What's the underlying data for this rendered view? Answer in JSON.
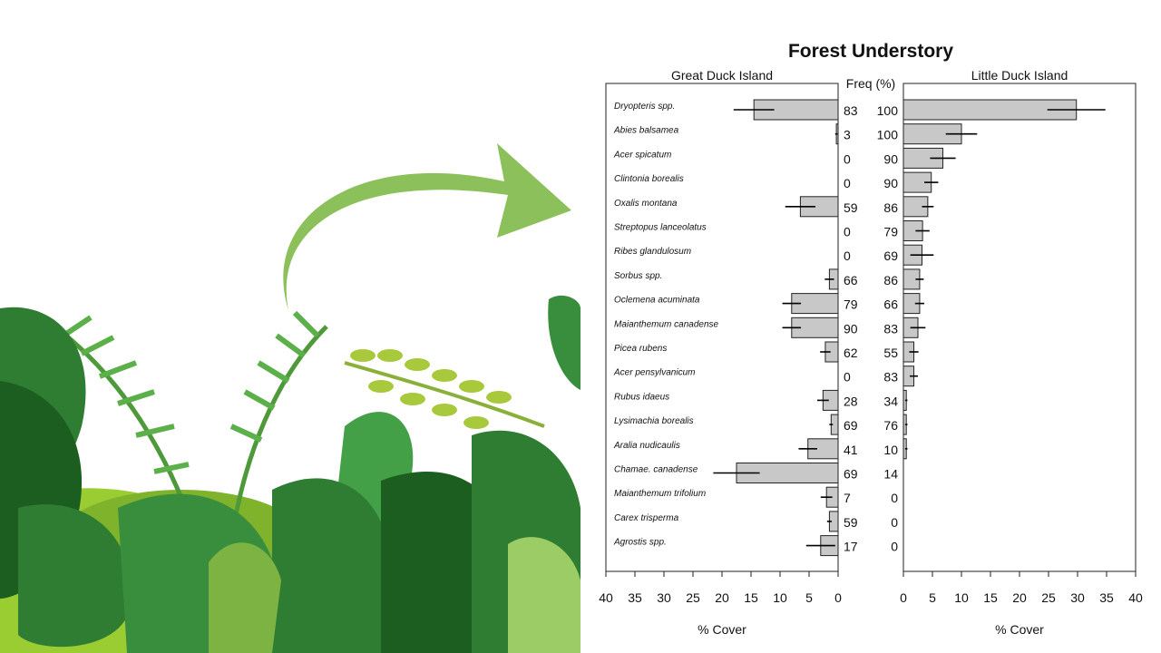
{
  "chart_data": {
    "type": "bar",
    "title": "Forest Understory",
    "freq_header": "Freq (%)",
    "categories": [
      "Dryopteris spp.",
      "Abies balsamea",
      "Acer spicatum",
      "Clintonia borealis",
      "Oxalis montana",
      "Streptopus lanceolatus",
      "Ribes glandulosum",
      "Sorbus spp.",
      "Oclemena acuminata",
      "Maianthemum canadense",
      "Picea rubens",
      "Acer pensylvanicum",
      "Rubus idaeus",
      "Lysimachia borealis",
      "Aralia nudicaulis",
      "Chamae. canadense",
      "Maianthemum trifolium",
      "Carex trisperma",
      "Agrostis spp."
    ],
    "panels": [
      {
        "name": "Great Duck Island",
        "direction": "left",
        "xlabel": "% Cover",
        "xlim": [
          0,
          40
        ],
        "ticks": [
          "40",
          "35",
          "30",
          "25",
          "20",
          "15",
          "10",
          "5",
          "0"
        ],
        "values": [
          14.5,
          0.3,
          0,
          0,
          6.5,
          0,
          0,
          1.5,
          8,
          8,
          2.2,
          0,
          2.6,
          1.2,
          5.2,
          17.5,
          2,
          1.5,
          3
        ],
        "errors": [
          3.5,
          0.2,
          0,
          0,
          2.6,
          0,
          0,
          0.8,
          1.6,
          1.6,
          0.9,
          0,
          1,
          0.3,
          1.6,
          4,
          1,
          0.4,
          2.5
        ],
        "freq": [
          "83",
          "3",
          "0",
          "0",
          "59",
          "0",
          "0",
          "66",
          "79",
          "90",
          "62",
          "0",
          "28",
          "69",
          "41",
          "69",
          "7",
          "59",
          "17"
        ]
      },
      {
        "name": "Little Duck Island",
        "direction": "right",
        "xlabel": "% Cover",
        "xlim": [
          0,
          40
        ],
        "ticks": [
          "0",
          "5",
          "10",
          "15",
          "20",
          "25",
          "30",
          "35",
          "40"
        ],
        "values": [
          29.8,
          10,
          6.8,
          4.8,
          4.2,
          3.3,
          3.2,
          2.8,
          2.8,
          2.5,
          1.8,
          1.8,
          0.5,
          0.5,
          0.5,
          0,
          0,
          0,
          0
        ],
        "errors": [
          5,
          2.7,
          2.2,
          1.2,
          1,
          1.2,
          2,
          0.7,
          0.8,
          1.3,
          0.8,
          0.7,
          0.2,
          0.2,
          0.2,
          0,
          0,
          0,
          0
        ],
        "freq": [
          "100",
          "100",
          "90",
          "90",
          "86",
          "79",
          "69",
          "86",
          "66",
          "83",
          "55",
          "83",
          "34",
          "76",
          "10",
          "14",
          "0",
          "0",
          "0"
        ]
      }
    ],
    "grid": false,
    "colors": {
      "bar_fill": "#c8c8c8",
      "bar_stroke": "#222222",
      "arrow": "#8cc05a"
    }
  }
}
